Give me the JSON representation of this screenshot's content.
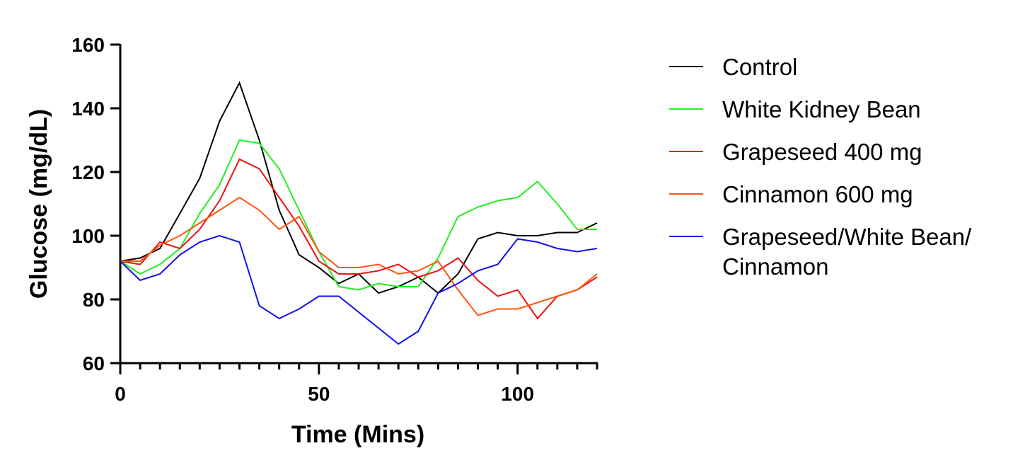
{
  "chart_data": {
    "type": "line",
    "title": "",
    "xlabel": "Time (Mins)",
    "ylabel": "Glucose (mg/dL)",
    "xlim": [
      0,
      120
    ],
    "ylim": [
      60,
      160
    ],
    "xticks": [
      0,
      50,
      100
    ],
    "yticks": [
      60,
      80,
      100,
      120,
      140,
      160
    ],
    "x_minor_step": 5,
    "grid": false,
    "legend_position": "right",
    "x": [
      0,
      5,
      10,
      15,
      20,
      25,
      30,
      35,
      40,
      45,
      50,
      55,
      60,
      65,
      70,
      75,
      80,
      85,
      90,
      95,
      100,
      105,
      110,
      115,
      120
    ],
    "series": [
      {
        "name": "Control",
        "color": "#000000",
        "values": [
          92,
          93,
          96,
          107,
          118,
          136,
          148,
          130,
          108,
          94,
          90,
          85,
          88,
          82,
          84,
          87,
          82,
          88,
          99,
          101,
          100,
          100,
          101,
          101,
          104
        ]
      },
      {
        "name": "White Kidney Bean",
        "color": "#22ee22",
        "values": [
          92,
          88,
          91,
          96,
          107,
          116,
          130,
          129,
          121,
          108,
          95,
          84,
          83,
          85,
          84,
          84,
          93,
          106,
          109,
          111,
          112,
          117,
          110,
          102,
          102
        ]
      },
      {
        "name": "Grapeseed 400 mg",
        "color": "#ee1111",
        "values": [
          92,
          91,
          98,
          96,
          102,
          111,
          124,
          121,
          112,
          103,
          92,
          88,
          88,
          89,
          91,
          87,
          89,
          93,
          86,
          81,
          83,
          74,
          81,
          83,
          87
        ]
      },
      {
        "name": "Cinnamon 600 mg",
        "color": "#ff5511",
        "values": [
          92,
          92,
          97,
          100,
          104,
          108,
          112,
          108,
          102,
          106,
          95,
          90,
          90,
          91,
          88,
          89,
          92,
          83,
          75,
          77,
          77,
          79,
          81,
          83,
          88
        ]
      },
      {
        "name": "Grapeseed/White Bean/ Cinnamon",
        "legend_lines": [
          "Grapeseed/White Bean/",
          "Cinnamon"
        ],
        "color": "#1111ee",
        "values": [
          92,
          86,
          88,
          94,
          98,
          100,
          98,
          78,
          74,
          77,
          81,
          81,
          76,
          71,
          66,
          70,
          82,
          85,
          89,
          91,
          99,
          98,
          96,
          95,
          96
        ]
      }
    ]
  }
}
